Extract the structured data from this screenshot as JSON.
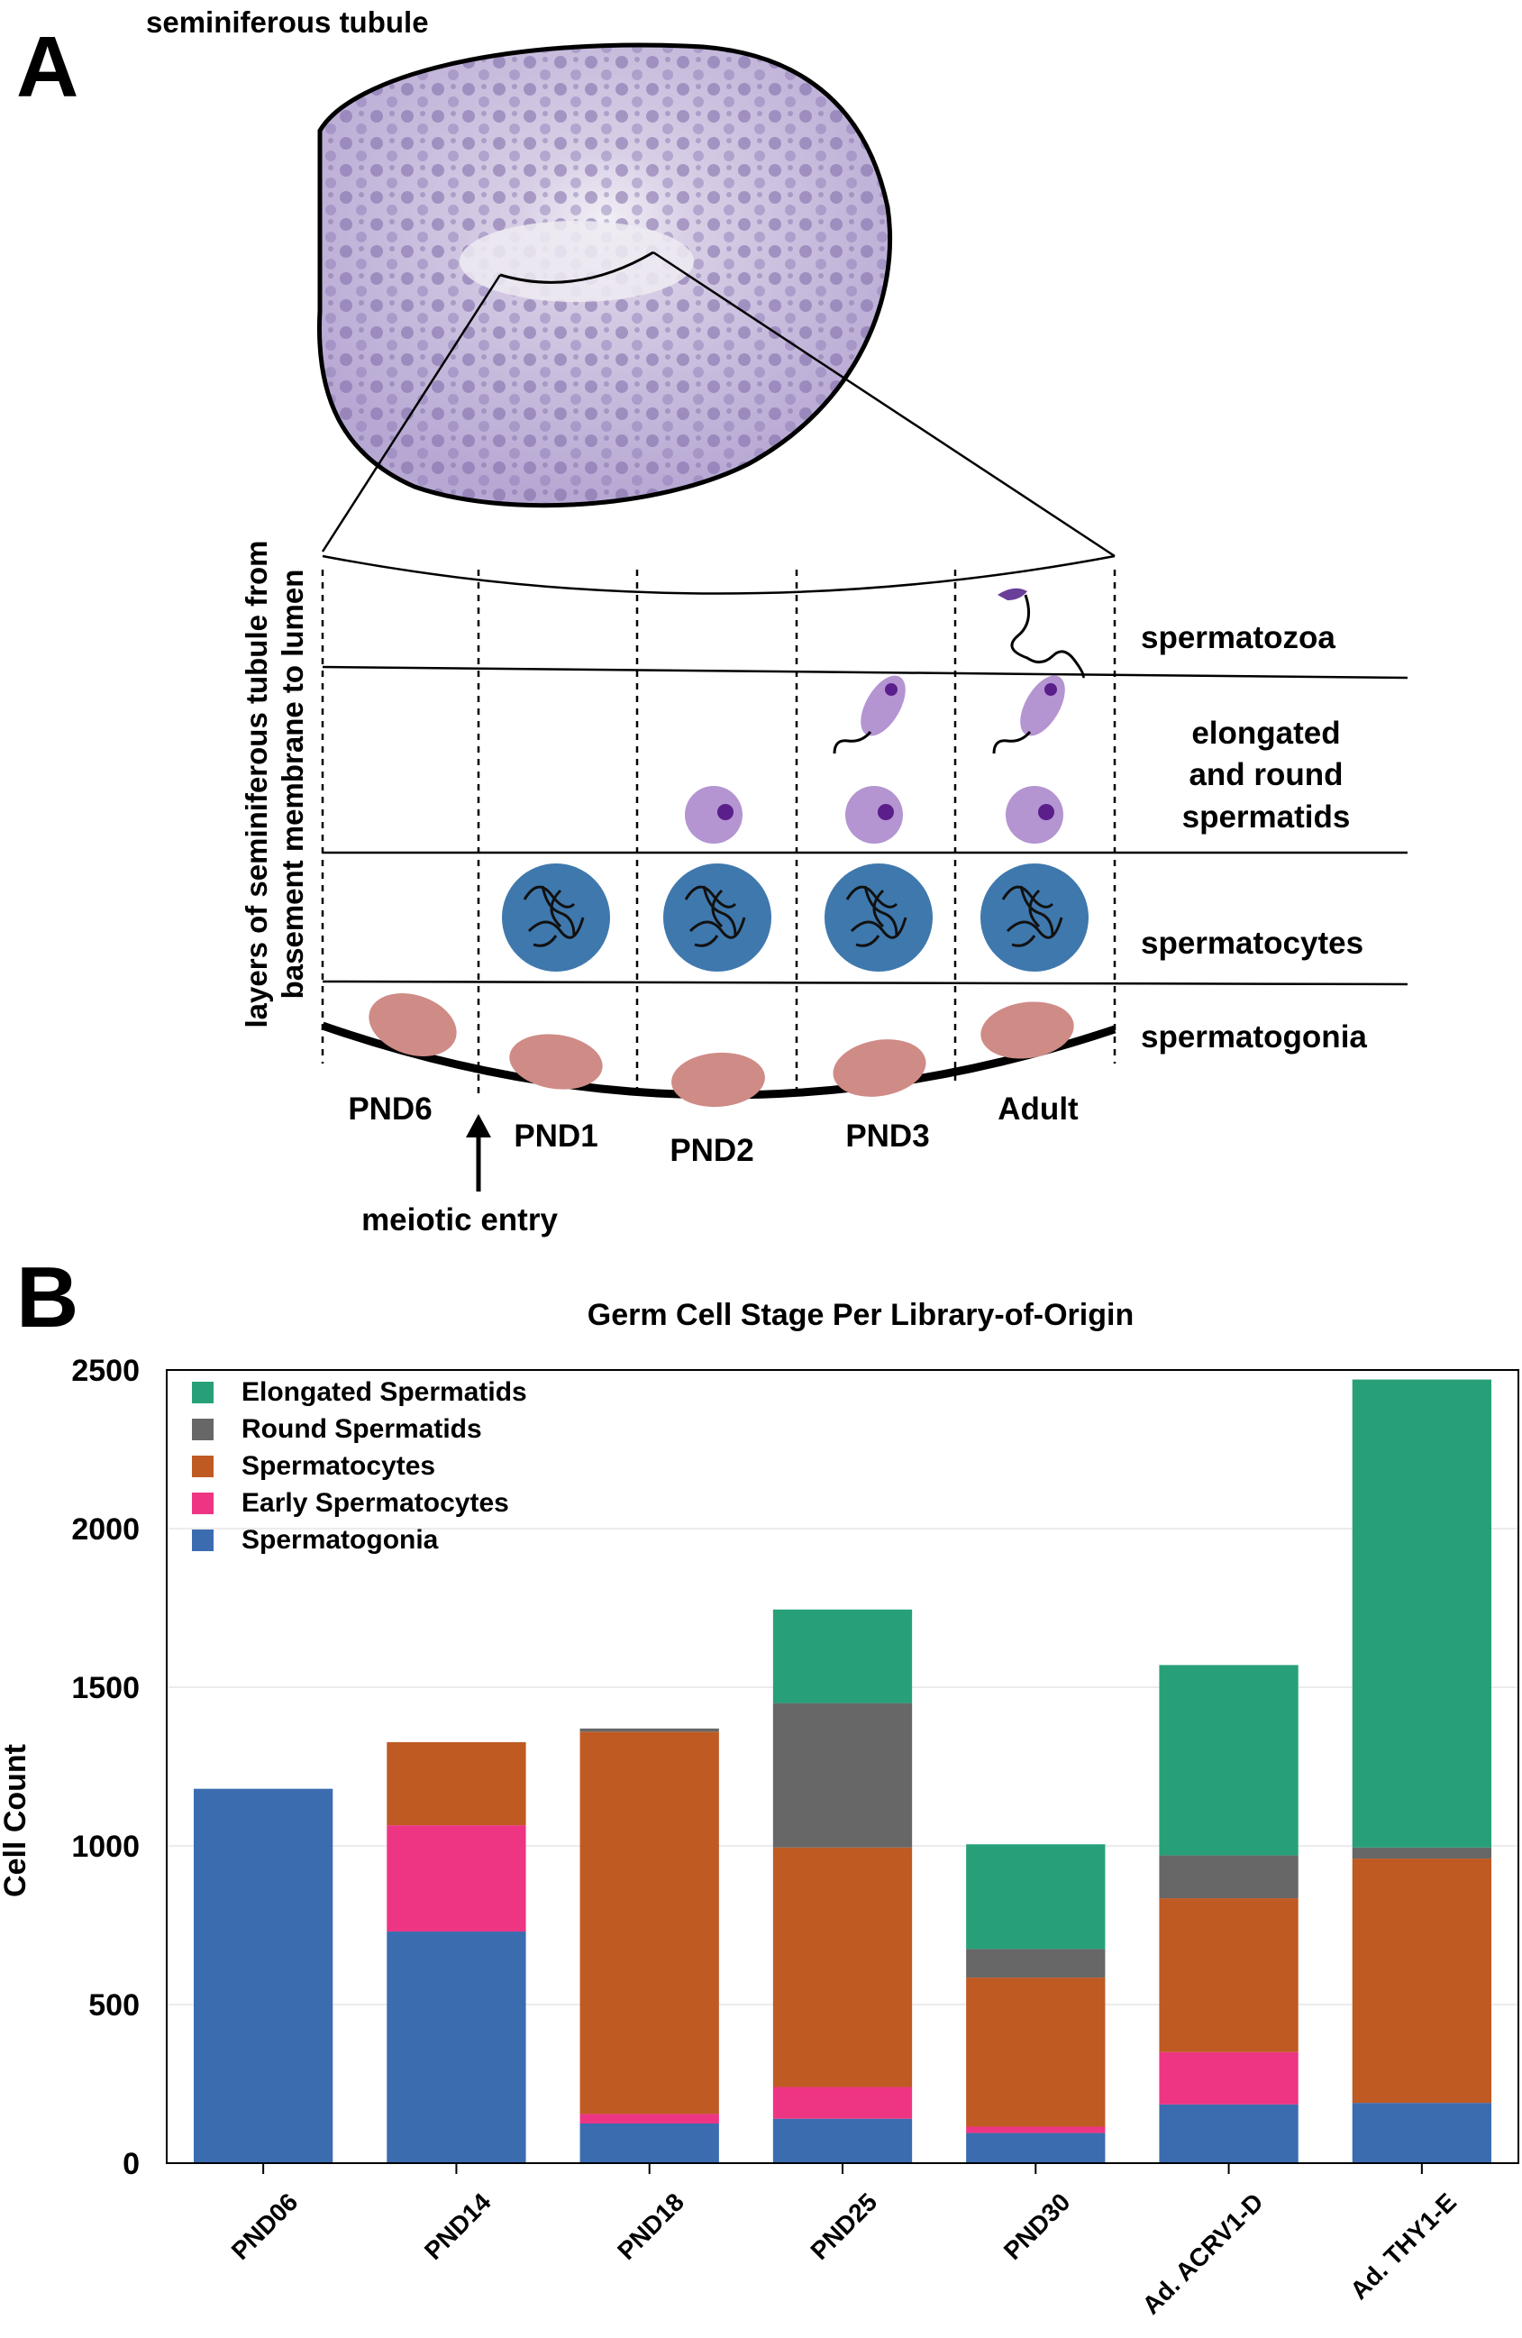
{
  "panel_a": {
    "letter": "A",
    "tubule_label": "seminiferous tubule",
    "vertical_label_line1": "layers of seminiferous tubule from",
    "vertical_label_line2": "basement membrane to lumen",
    "layers": [
      "spermatozoa",
      "elongated",
      "and round",
      "spermatids",
      "spermatocytes",
      "spermatogonia"
    ],
    "stages": [
      "PND6",
      "PND1",
      "PND2",
      "PND3",
      "Adult"
    ],
    "meiotic_entry": "meiotic entry",
    "colors": {
      "spermatogonia_cell": "#cf8b86",
      "spermatocyte_cell": "#3f78ad",
      "spermatid_cell": "#b494d1",
      "spermatid_nucleus": "#5a1f8a",
      "tubule_tissue": "#c5b8dc"
    }
  },
  "panel_b": {
    "letter": "B"
  },
  "chart_data": {
    "type": "bar",
    "stacked": true,
    "title": "Germ Cell Stage Per Library-of-Origin",
    "xlabel": "",
    "ylabel": "Cell Count",
    "ylim": [
      0,
      2500
    ],
    "yticks": [
      0,
      500,
      1000,
      1500,
      2000,
      2500
    ],
    "grid": true,
    "legend_position": "top-left",
    "categories": [
      "PND06",
      "PND14",
      "PND18",
      "PND25",
      "PND30",
      "Ad. ACRV1-D",
      "Ad. THY1-E"
    ],
    "series": [
      {
        "name": "Spermatogonia",
        "color": "#3b6cb0",
        "values": [
          1180,
          730,
          125,
          140,
          95,
          185,
          190
        ]
      },
      {
        "name": "Early Spermatocytes",
        "color": "#ee3584",
        "values": [
          0,
          335,
          30,
          100,
          20,
          165,
          0
        ]
      },
      {
        "name": "Spermatocytes",
        "color": "#bf5a23",
        "values": [
          0,
          262,
          1205,
          755,
          470,
          485,
          770
        ]
      },
      {
        "name": "Round Spermatids",
        "color": "#676767",
        "values": [
          0,
          0,
          10,
          455,
          90,
          135,
          35
        ]
      },
      {
        "name": "Elongated Spermatids",
        "color": "#27a07a",
        "values": [
          0,
          0,
          0,
          295,
          330,
          600,
          1475
        ]
      }
    ],
    "legend_order": [
      "Elongated Spermatids",
      "Round Spermatids",
      "Spermatocytes",
      "Early Spermatocytes",
      "Spermatogonia"
    ]
  }
}
